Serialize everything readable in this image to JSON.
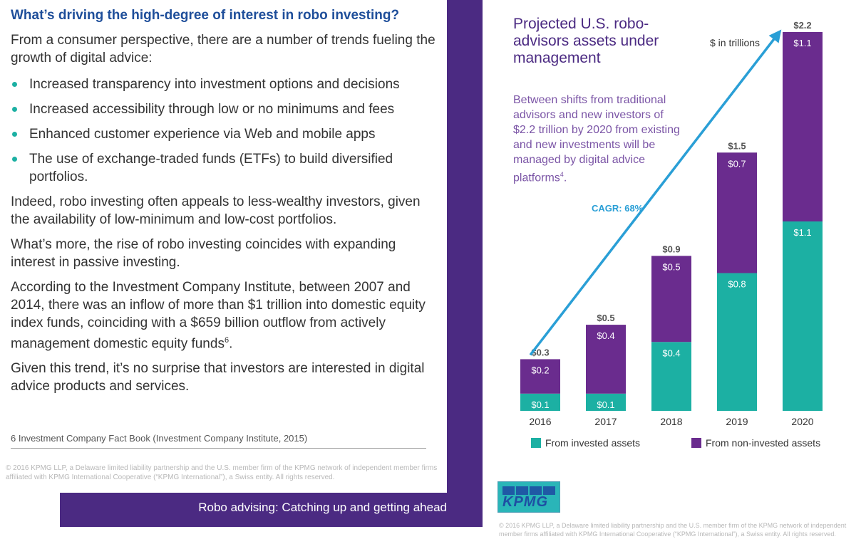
{
  "left_panel": {
    "heading": "What’s driving the high-degree of interest in robo investing?",
    "intro": "From a consumer perspective, there are a number of trends fueling the growth of digital advice:",
    "bullets": [
      "Increased transparency into investment options and decisions",
      "Increased accessibility through low or no minimums and fees",
      "Enhanced customer experience via Web and mobile apps",
      "The use of exchange-traded funds (ETFs) to build diversified portfolios."
    ],
    "paragraphs": [
      "Indeed, robo investing often appeals to less-wealthy investors, given the availability of low-minimum and low-cost portfolios.",
      "What’s more, the rise of robo investing coincides with expanding interest in passive investing.",
      "According to the Investment Company Institute, between 2007 and 2014, there was an inflow of more than $1 trillion into domestic equity index funds, coinciding with a $659 billion outflow from actively management domestic equity funds",
      "Given this trend, it’s no surprise that investors are interested in digital advice products and services."
    ],
    "footnote_marker": "6",
    "footnote": "6 Investment Company Fact Book (Investment Company Institute, 2015)",
    "copyright": "© 2016 KPMG LLP, a Delaware limited liability partnership and the U.S. member firm of the KPMG network of independent member firms affiliated with KPMG International Cooperative (“KPMG International”), a Swiss entity. All rights reserved.",
    "footer_bar_text": "Robo advising: Catching up and getting ahead"
  },
  "right_panel": {
    "subtitle": "Between shifts from traditional advisors and new investors of $2.2 trillion by 2020 from existing and new investments will be managed by digital advice platforms",
    "subtitle_marker": "4",
    "logo_text": "KPMG",
    "copyright": "© 2016 KPMG LLP, a Delaware limited liability partnership and the U.S. member firm of the KPMG network of independent member firms affiliated with KPMG International Cooperative (“KPMG International”), a Swiss entity. All rights reserved."
  },
  "colors": {
    "accent_purple": "#4b2a82",
    "series_invested": "#1cb0a3",
    "series_non_invested": "#6a2c8e",
    "arrow": "#2a9fd6",
    "heading_blue": "#1e4e9a"
  },
  "chart_data": {
    "type": "bar",
    "stacked": true,
    "title": "Projected U.S. robo-advisors assets under management",
    "units_label": "$ in trillions",
    "categories": [
      "2016",
      "2017",
      "2018",
      "2019",
      "2020"
    ],
    "series": [
      {
        "name": "From invested assets",
        "values": [
          0.1,
          0.1,
          0.4,
          0.8,
          1.1
        ],
        "labels": [
          "$0.1",
          "$0.1",
          "$0.4",
          "$0.8",
          "$1.1"
        ]
      },
      {
        "name": "From non-invested assets",
        "values": [
          0.2,
          0.4,
          0.5,
          0.7,
          1.1
        ],
        "labels": [
          "$0.2",
          "$0.4",
          "$0.5",
          "$0.7",
          "$1.1"
        ]
      }
    ],
    "totals": [
      "$0.3",
      "$0.5",
      "$0.9",
      "$1.5",
      "$2.2"
    ],
    "total_values": [
      0.3,
      0.5,
      0.9,
      1.5,
      2.2
    ],
    "trend_annotation": "CAGR: 68%",
    "ylim": [
      0,
      2.2
    ],
    "grid": false,
    "legend_position": "bottom"
  }
}
